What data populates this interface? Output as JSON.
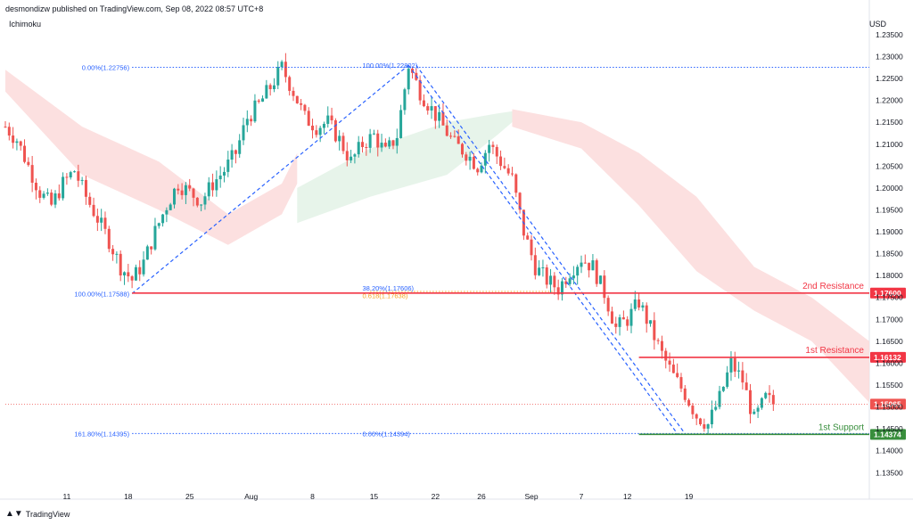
{
  "header": {
    "publisher": "desmondizw published on TradingView.com, Sep 08, 2022 08:57 UTC+8"
  },
  "indicator": {
    "name": "Ichimoku"
  },
  "currency": "USD",
  "footer": {
    "brand": "TradingView",
    "logo_icon": "tradingview-logo-icon"
  },
  "colors": {
    "up": "#26a69a",
    "down": "#ef5350",
    "fib": "#2962ff",
    "resistance": "#f23645",
    "support": "#388e3c",
    "golden": "#f5a623",
    "cloud_bear": "#fcdada",
    "cloud_bull": "#e3f2e6"
  },
  "chart_data": {
    "type": "candlestick",
    "ylim": [
      1.132,
      1.236
    ],
    "y_ticks": [
      "1.23500",
      "1.23000",
      "1.22500",
      "1.22000",
      "1.21500",
      "1.21000",
      "1.20500",
      "1.20000",
      "1.19500",
      "1.19000",
      "1.18500",
      "1.18000",
      "1.17500",
      "1.17000",
      "1.16500",
      "1.16000",
      "1.15500",
      "1.15000",
      "1.14500",
      "1.14000",
      "1.13500"
    ],
    "x_ticks": [
      "11",
      "18",
      "25",
      "Aug",
      "8",
      "15",
      "22",
      "26",
      "Sep",
      "7",
      "12",
      "19"
    ],
    "price_path": [
      [
        0,
        1.214
      ],
      [
        3,
        1.211
      ],
      [
        6,
        1.205
      ],
      [
        9,
        1.199
      ],
      [
        12,
        1.196
      ],
      [
        15,
        1.201
      ],
      [
        18,
        1.204
      ],
      [
        21,
        1.198
      ],
      [
        24,
        1.193
      ],
      [
        27,
        1.188
      ],
      [
        30,
        1.182
      ],
      [
        33,
        1.179
      ],
      [
        36,
        1.183
      ],
      [
        39,
        1.19
      ],
      [
        42,
        1.196
      ],
      [
        45,
        1.201
      ],
      [
        48,
        1.199
      ],
      [
        51,
        1.197
      ],
      [
        54,
        1.201
      ],
      [
        57,
        1.204
      ],
      [
        60,
        1.208
      ],
      [
        63,
        1.216
      ],
      [
        66,
        1.219
      ],
      [
        69,
        1.223
      ],
      [
        72,
        1.2275
      ],
      [
        75,
        1.222
      ],
      [
        78,
        1.216
      ],
      [
        81,
        1.214
      ],
      [
        84,
        1.215
      ],
      [
        87,
        1.211
      ],
      [
        90,
        1.206
      ],
      [
        93,
        1.21
      ],
      [
        96,
        1.212
      ],
      [
        99,
        1.208
      ],
      [
        102,
        1.212
      ],
      [
        105,
        1.228
      ],
      [
        108,
        1.222
      ],
      [
        111,
        1.218
      ],
      [
        114,
        1.214
      ],
      [
        117,
        1.21
      ],
      [
        120,
        1.208
      ],
      [
        123,
        1.205
      ],
      [
        126,
        1.21
      ],
      [
        129,
        1.206
      ],
      [
        132,
        1.202
      ],
      [
        135,
        1.19
      ],
      [
        138,
        1.182
      ],
      [
        141,
        1.179
      ],
      [
        144,
        1.177
      ],
      [
        147,
        1.181
      ],
      [
        150,
        1.184
      ],
      [
        153,
        1.182
      ],
      [
        156,
        1.176
      ],
      [
        159,
        1.168
      ],
      [
        162,
        1.17
      ],
      [
        165,
        1.174
      ],
      [
        168,
        1.168
      ],
      [
        171,
        1.162
      ],
      [
        174,
        1.157
      ],
      [
        177,
        1.153
      ],
      [
        180,
        1.148
      ],
      [
        183,
        1.146
      ],
      [
        186,
        1.152
      ],
      [
        189,
        1.16
      ],
      [
        192,
        1.156
      ],
      [
        195,
        1.147
      ],
      [
        198,
        1.152
      ],
      [
        200,
        1.1507
      ]
    ],
    "cloud_bear": [
      [
        [
          0,
          1.227
        ],
        [
          20,
          1.214
        ],
        [
          40,
          1.206
        ],
        [
          58,
          1.194
        ],
        [
          72,
          1.201
        ],
        [
          76,
          1.208
        ]
      ],
      [
        [
          0,
          1.222
        ],
        [
          20,
          1.203
        ],
        [
          40,
          1.195
        ],
        [
          58,
          1.187
        ],
        [
          72,
          1.194
        ],
        [
          76,
          1.201
        ]
      ]
    ],
    "cloud_bull": [
      [
        [
          76,
          1.2
        ],
        [
          95,
          1.209
        ],
        [
          115,
          1.215
        ],
        [
          128,
          1.217
        ],
        [
          132,
          1.2175
        ]
      ],
      [
        [
          76,
          1.192
        ],
        [
          95,
          1.198
        ],
        [
          115,
          1.203
        ],
        [
          128,
          1.212
        ],
        [
          132,
          1.215
        ]
      ]
    ],
    "cloud_bear2": [
      [
        [
          132,
          1.218
        ],
        [
          150,
          1.215
        ],
        [
          165,
          1.208
        ],
        [
          180,
          1.198
        ],
        [
          195,
          1.182
        ],
        [
          210,
          1.175
        ],
        [
          225,
          1.165
        ]
      ],
      [
        [
          132,
          1.214
        ],
        [
          150,
          1.209
        ],
        [
          165,
          1.196
        ],
        [
          180,
          1.181
        ],
        [
          195,
          1.172
        ],
        [
          210,
          1.165
        ],
        [
          225,
          1.151
        ]
      ]
    ],
    "fib_levels": [
      {
        "label": "0.00%(1.22756)",
        "price": 1.22756
      },
      {
        "label": "100.00%(1.22802)",
        "price": 1.22802
      },
      {
        "label": "100.00%(1.17588)",
        "price": 1.17588
      },
      {
        "label": "0.618(1.17638)",
        "price": 1.17638
      },
      {
        "label": "38.20%(1.17606)",
        "price": 1.17606
      },
      {
        "label": "161.80%(1.14395)",
        "price": 1.14395
      },
      {
        "label": "0.00%(1.14394)",
        "price": 1.14394
      }
    ],
    "levels": [
      {
        "name": "2nd Resistance",
        "price": 1.176,
        "label": "1.17600",
        "color": "resistance"
      },
      {
        "name": "1st Resistance",
        "price": 1.16132,
        "label": "1.16132",
        "color": "resistance"
      },
      {
        "name": "1st Support",
        "price": 1.14374,
        "label": "1.14374",
        "color": "support"
      }
    ],
    "current_price": {
      "price": 1.15065,
      "label": "1.15065"
    }
  }
}
